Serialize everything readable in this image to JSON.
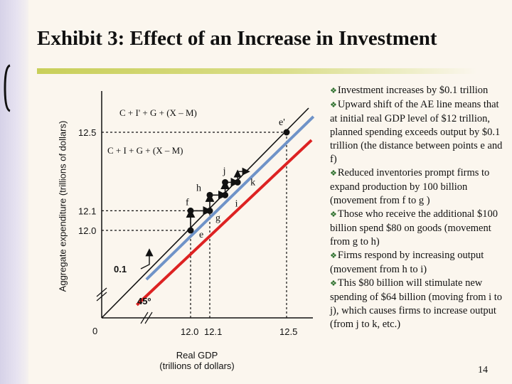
{
  "title": "Exhibit 3: Effect of an Increase in Investment",
  "colors": {
    "ae_original": "#dd2222",
    "ae_new": "#6f93c8",
    "axis": "#111111",
    "accent_underline": "#c9cf5a",
    "bullet_icon": "#2a6e2a"
  },
  "chart_data": {
    "type": "line",
    "title": "",
    "xlabel": "Real GDP (trillions of dollars)",
    "xlabel_line1": "Real GDP",
    "xlabel_line2": "(trillions of dollars)",
    "ylabel": "Aggregate expenditure (trillions of dollars)",
    "origin_label": "0",
    "x_ticks": [
      {
        "value": 12.0,
        "label": "12.0"
      },
      {
        "value": 12.1,
        "label": "12.1"
      },
      {
        "value": 12.5,
        "label": "12.5"
      }
    ],
    "y_ticks": [
      {
        "value": 12.0,
        "label": "12.0"
      },
      {
        "value": 12.1,
        "label": "12.1"
      },
      {
        "value": 12.5,
        "label": "12.5"
      }
    ],
    "series": [
      {
        "name": "45° line",
        "label": "45º",
        "points": [
          [
            11.55,
            11.55
          ],
          [
            12.62,
            12.62
          ]
        ]
      },
      {
        "name": "C + I + G + (X – M)",
        "label": "C + I + G + (X – M)",
        "points": [
          [
            11.72,
            11.62
          ],
          [
            12.63,
            12.46
          ]
        ]
      },
      {
        "name": "C + I' + G + (X – M)",
        "label": "C + I' + G + (X – M)",
        "points": [
          [
            11.77,
            11.75
          ],
          [
            12.64,
            12.58
          ]
        ]
      }
    ],
    "points": [
      {
        "name": "e",
        "label": "e",
        "x": 12.0,
        "y": 12.0
      },
      {
        "name": "f",
        "label": "f",
        "x": 12.0,
        "y": 12.1
      },
      {
        "name": "g",
        "label": "g",
        "x": 12.1,
        "y": 12.1
      },
      {
        "name": "h",
        "label": "h",
        "x": 12.1,
        "y": 12.18
      },
      {
        "name": "i",
        "label": "i",
        "x": 12.18,
        "y": 12.18
      },
      {
        "name": "j",
        "label": "j",
        "x": 12.18,
        "y": 12.245
      },
      {
        "name": "k",
        "label": "k",
        "x": 12.245,
        "y": 12.245
      },
      {
        "name": "e'",
        "label": "e'",
        "x": 12.5,
        "y": 12.5
      }
    ],
    "shift_annotation": {
      "label": "0.1",
      "value": 0.1
    },
    "axis_break": true
  },
  "bullets": [
    "Investment increases by $0.1 trillion",
    "Upward shift of the AE line means that at initial real GDP level of $12 trillion, planned spending exceeds output by $0.1 trillion (the distance between points e and f)",
    "Reduced inventories prompt firms to expand production by 100 billion (movement from f to g )",
    "Those who receive the additional $100 billion spend $80 on goods (movement from g to h)",
    "Firms respond by increasing output (movement from h to i)",
    "This $80 billion will stimulate new spending of $64 billion (moving from i to j), which causes firms to increase output (from j to k, etc.)"
  ],
  "bullet_icon": "diamond-bullet-icon",
  "page_number": "14"
}
